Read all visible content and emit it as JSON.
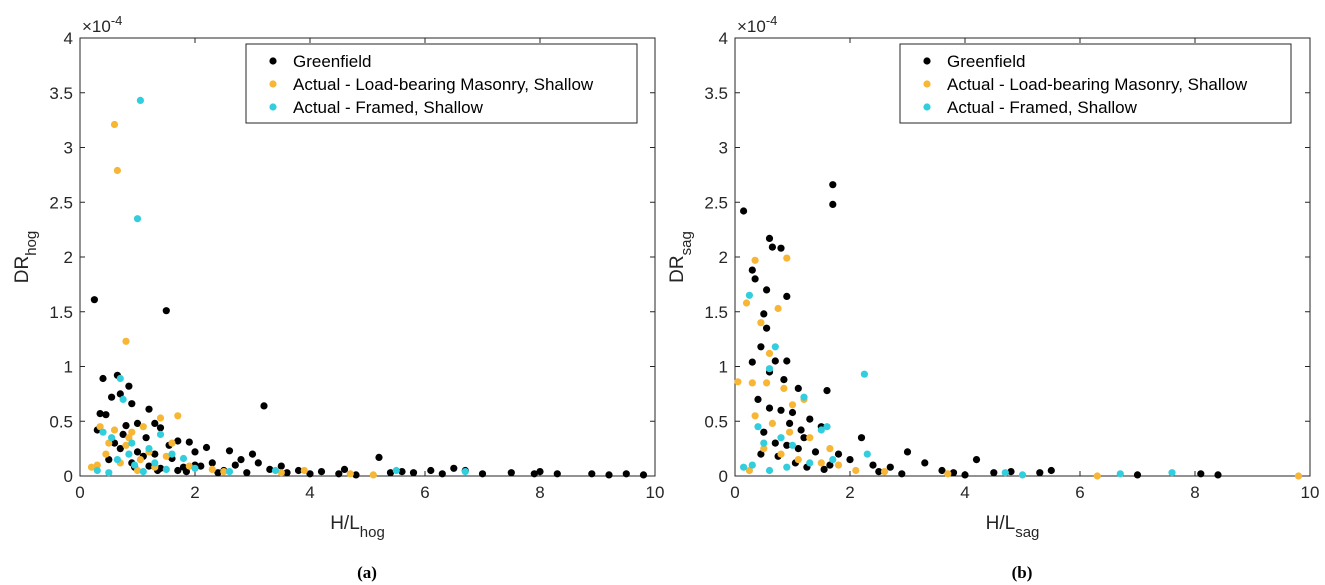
{
  "figure": {
    "colors": {
      "greenfield": "#000000",
      "masonry": "#f7b633",
      "framed": "#33cede",
      "axis": "#262626"
    }
  },
  "chart_data": [
    {
      "id": "a",
      "type": "scatter",
      "caption": "(a)",
      "xlabel_main": "H/L",
      "xlabel_sub": "hog",
      "ylabel_main": "DR",
      "ylabel_sub": "hog",
      "exponent_base": "×10",
      "exponent_power": "-4",
      "xlim": [
        0,
        10
      ],
      "ylim": [
        0,
        4
      ],
      "xticks": [
        "0",
        "2",
        "4",
        "6",
        "8",
        "10"
      ],
      "yticks": [
        "0",
        "0.5",
        "1",
        "1.5",
        "2",
        "2.5",
        "3",
        "3.5",
        "4"
      ],
      "legend_position": "top-right",
      "series": [
        {
          "name": "Greenfield",
          "color_key": "greenfield",
          "points": [
            [
              0.25,
              1.61
            ],
            [
              0.4,
              0.89
            ],
            [
              0.55,
              0.72
            ],
            [
              0.65,
              0.92
            ],
            [
              0.85,
              0.82
            ],
            [
              1.5,
              1.51
            ],
            [
              0.35,
              0.57
            ],
            [
              0.45,
              0.56
            ],
            [
              0.7,
              0.75
            ],
            [
              0.9,
              0.66
            ],
            [
              1.2,
              0.61
            ],
            [
              1.3,
              0.48
            ],
            [
              1.0,
              0.48
            ],
            [
              0.8,
              0.46
            ],
            [
              1.4,
              0.44
            ],
            [
              1.7,
              0.32
            ],
            [
              1.9,
              0.31
            ],
            [
              2.2,
              0.26
            ],
            [
              2.6,
              0.23
            ],
            [
              3.0,
              0.2
            ],
            [
              3.2,
              0.64
            ],
            [
              2.8,
              0.15
            ],
            [
              2.3,
              0.12
            ],
            [
              2.0,
              0.1
            ],
            [
              1.8,
              0.08
            ],
            [
              3.5,
              0.09
            ],
            [
              3.8,
              0.05
            ],
            [
              4.2,
              0.04
            ],
            [
              4.6,
              0.06
            ],
            [
              5.2,
              0.17
            ],
            [
              5.6,
              0.04
            ],
            [
              6.1,
              0.05
            ],
            [
              6.5,
              0.07
            ],
            [
              6.7,
              0.05
            ],
            [
              7.0,
              0.02
            ],
            [
              7.5,
              0.03
            ],
            [
              7.9,
              0.02
            ],
            [
              8.0,
              0.04
            ],
            [
              8.3,
              0.02
            ],
            [
              8.9,
              0.02
            ],
            [
              9.2,
              0.01
            ],
            [
              9.5,
              0.02
            ],
            [
              9.8,
              0.01
            ],
            [
              0.6,
              0.3
            ],
            [
              0.7,
              0.25
            ],
            [
              1.0,
              0.22
            ],
            [
              1.1,
              0.18
            ],
            [
              1.3,
              0.2
            ],
            [
              1.6,
              0.16
            ],
            [
              2.1,
              0.09
            ],
            [
              2.5,
              0.05
            ],
            [
              3.3,
              0.06
            ],
            [
              4.0,
              0.02
            ],
            [
              4.5,
              0.02
            ],
            [
              5.8,
              0.03
            ],
            [
              6.3,
              0.02
            ],
            [
              0.5,
              0.15
            ],
            [
              0.9,
              0.12
            ],
            [
              1.2,
              0.09
            ],
            [
              1.4,
              0.07
            ],
            [
              1.7,
              0.05
            ],
            [
              2.4,
              0.03
            ],
            [
              2.7,
              0.1
            ],
            [
              3.1,
              0.12
            ],
            [
              3.6,
              0.03
            ],
            [
              4.8,
              0.01
            ],
            [
              5.4,
              0.03
            ],
            [
              0.3,
              0.42
            ],
            [
              0.75,
              0.38
            ],
            [
              1.15,
              0.35
            ],
            [
              1.55,
              0.28
            ],
            [
              2.0,
              0.22
            ],
            [
              0.95,
              0.08
            ],
            [
              1.35,
              0.05
            ],
            [
              1.85,
              0.04
            ],
            [
              2.9,
              0.03
            ]
          ]
        },
        {
          "name": "Actual - Load-bearing Masonry, Shallow",
          "color_key": "masonry",
          "points": [
            [
              0.6,
              3.21
            ],
            [
              0.65,
              2.79
            ],
            [
              0.8,
              1.23
            ],
            [
              0.35,
              0.45
            ],
            [
              0.6,
              0.42
            ],
            [
              0.9,
              0.4
            ],
            [
              1.1,
              0.45
            ],
            [
              1.4,
              0.53
            ],
            [
              1.7,
              0.55
            ],
            [
              0.5,
              0.3
            ],
            [
              0.8,
              0.28
            ],
            [
              1.2,
              0.22
            ],
            [
              1.5,
              0.18
            ],
            [
              0.3,
              0.1
            ],
            [
              0.7,
              0.12
            ],
            [
              1.0,
              0.05
            ],
            [
              1.3,
              0.08
            ],
            [
              1.9,
              0.09
            ],
            [
              2.3,
              0.06
            ],
            [
              2.5,
              0.04
            ],
            [
              3.5,
              0.03
            ],
            [
              3.9,
              0.05
            ],
            [
              4.7,
              0.02
            ],
            [
              5.1,
              0.01
            ],
            [
              0.2,
              0.08
            ],
            [
              0.45,
              0.2
            ],
            [
              1.6,
              0.3
            ],
            [
              0.85,
              0.35
            ],
            [
              1.05,
              0.15
            ]
          ]
        },
        {
          "name": "Actual - Framed, Shallow",
          "color_key": "framed",
          "points": [
            [
              1.05,
              3.43
            ],
            [
              1.0,
              2.35
            ],
            [
              0.7,
              0.89
            ],
            [
              0.75,
              0.7
            ],
            [
              0.4,
              0.4
            ],
            [
              0.55,
              0.35
            ],
            [
              0.9,
              0.3
            ],
            [
              1.2,
              0.25
            ],
            [
              1.4,
              0.38
            ],
            [
              0.65,
              0.15
            ],
            [
              0.95,
              0.1
            ],
            [
              1.3,
              0.12
            ],
            [
              1.6,
              0.2
            ],
            [
              1.8,
              0.16
            ],
            [
              0.3,
              0.05
            ],
            [
              0.5,
              0.03
            ],
            [
              1.1,
              0.04
            ],
            [
              2.0,
              0.07
            ],
            [
              2.6,
              0.04
            ],
            [
              3.4,
              0.05
            ],
            [
              5.5,
              0.05
            ],
            [
              6.7,
              0.04
            ],
            [
              0.85,
              0.2
            ],
            [
              1.5,
              0.06
            ]
          ]
        }
      ]
    },
    {
      "id": "b",
      "type": "scatter",
      "caption": "(b)",
      "xlabel_main": "H/L",
      "xlabel_sub": "sag",
      "ylabel_main": "DR",
      "ylabel_sub": "sag",
      "exponent_base": "×10",
      "exponent_power": "-4",
      "xlim": [
        0,
        10
      ],
      "ylim": [
        0,
        4
      ],
      "xticks": [
        "0",
        "2",
        "4",
        "6",
        "8",
        "10"
      ],
      "yticks": [
        "0",
        "0.5",
        "1",
        "1.5",
        "2",
        "2.5",
        "3",
        "3.5",
        "4"
      ],
      "legend_position": "top-right",
      "series": [
        {
          "name": "Greenfield",
          "color_key": "greenfield",
          "points": [
            [
              0.15,
              2.42
            ],
            [
              1.7,
              2.66
            ],
            [
              1.7,
              2.48
            ],
            [
              0.6,
              2.17
            ],
            [
              0.65,
              2.09
            ],
            [
              0.8,
              2.08
            ],
            [
              0.3,
              1.88
            ],
            [
              0.35,
              1.8
            ],
            [
              0.55,
              1.7
            ],
            [
              0.9,
              1.64
            ],
            [
              0.5,
              1.48
            ],
            [
              0.45,
              1.18
            ],
            [
              0.7,
              1.05
            ],
            [
              0.3,
              1.04
            ],
            [
              0.9,
              1.05
            ],
            [
              1.6,
              0.78
            ],
            [
              0.85,
              0.88
            ],
            [
              1.1,
              0.8
            ],
            [
              0.4,
              0.7
            ],
            [
              0.6,
              0.62
            ],
            [
              0.8,
              0.6
            ],
            [
              1.0,
              0.58
            ],
            [
              1.3,
              0.52
            ],
            [
              1.5,
              0.45
            ],
            [
              1.2,
              0.35
            ],
            [
              0.5,
              0.4
            ],
            [
              0.7,
              0.3
            ],
            [
              0.9,
              0.28
            ],
            [
              1.1,
              0.25
            ],
            [
              1.4,
              0.22
            ],
            [
              1.8,
              0.2
            ],
            [
              2.2,
              0.35
            ],
            [
              2.0,
              0.15
            ],
            [
              2.4,
              0.1
            ],
            [
              2.7,
              0.08
            ],
            [
              3.0,
              0.22
            ],
            [
              3.3,
              0.12
            ],
            [
              3.6,
              0.05
            ],
            [
              4.2,
              0.15
            ],
            [
              4.5,
              0.03
            ],
            [
              4.8,
              0.04
            ],
            [
              5.3,
              0.03
            ],
            [
              5.5,
              0.05
            ],
            [
              7.0,
              0.01
            ],
            [
              8.1,
              0.02
            ],
            [
              8.4,
              0.01
            ],
            [
              0.45,
              0.2
            ],
            [
              0.75,
              0.18
            ],
            [
              1.05,
              0.12
            ],
            [
              1.25,
              0.08
            ],
            [
              1.55,
              0.06
            ],
            [
              2.5,
              0.04
            ],
            [
              2.9,
              0.02
            ],
            [
              3.8,
              0.03
            ],
            [
              4.0,
              0.01
            ],
            [
              0.6,
              0.95
            ],
            [
              0.55,
              1.35
            ],
            [
              1.15,
              0.42
            ],
            [
              1.65,
              0.1
            ],
            [
              0.95,
              0.48
            ]
          ]
        },
        {
          "name": "Actual - Load-bearing Masonry, Shallow",
          "color_key": "masonry",
          "points": [
            [
              0.35,
              1.97
            ],
            [
              0.9,
              1.99
            ],
            [
              0.2,
              1.58
            ],
            [
              0.45,
              1.4
            ],
            [
              0.6,
              1.12
            ],
            [
              0.75,
              1.53
            ],
            [
              0.05,
              0.86
            ],
            [
              0.3,
              0.85
            ],
            [
              0.55,
              0.85
            ],
            [
              0.85,
              0.8
            ],
            [
              1.0,
              0.65
            ],
            [
              1.2,
              0.7
            ],
            [
              0.35,
              0.55
            ],
            [
              0.65,
              0.48
            ],
            [
              0.95,
              0.4
            ],
            [
              1.3,
              0.35
            ],
            [
              0.5,
              0.25
            ],
            [
              0.8,
              0.2
            ],
            [
              1.1,
              0.15
            ],
            [
              1.5,
              0.12
            ],
            [
              1.8,
              0.1
            ],
            [
              2.1,
              0.05
            ],
            [
              2.6,
              0.04
            ],
            [
              3.7,
              0.02
            ],
            [
              6.3,
              0.0
            ],
            [
              9.8,
              0.0
            ],
            [
              0.25,
              0.05
            ],
            [
              1.65,
              0.25
            ]
          ]
        },
        {
          "name": "Actual - Framed, Shallow",
          "color_key": "framed",
          "points": [
            [
              0.25,
              1.65
            ],
            [
              0.7,
              1.18
            ],
            [
              0.6,
              0.98
            ],
            [
              2.25,
              0.93
            ],
            [
              1.2,
              0.72
            ],
            [
              0.4,
              0.45
            ],
            [
              0.5,
              0.3
            ],
            [
              0.8,
              0.35
            ],
            [
              1.0,
              0.28
            ],
            [
              1.6,
              0.45
            ],
            [
              1.5,
              0.42
            ],
            [
              0.3,
              0.1
            ],
            [
              0.6,
              0.05
            ],
            [
              0.9,
              0.08
            ],
            [
              1.3,
              0.12
            ],
            [
              2.3,
              0.2
            ],
            [
              4.7,
              0.03
            ],
            [
              5.0,
              0.01
            ],
            [
              6.7,
              0.02
            ],
            [
              7.6,
              0.03
            ],
            [
              0.15,
              0.08
            ],
            [
              1.7,
              0.15
            ]
          ]
        }
      ]
    }
  ]
}
